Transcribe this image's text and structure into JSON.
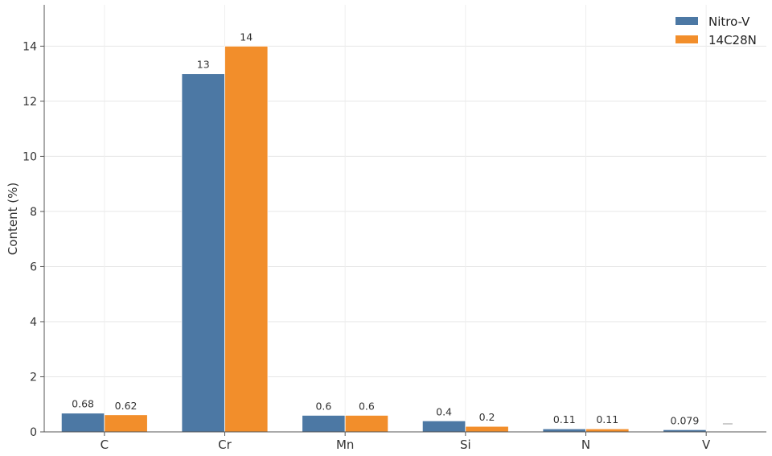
{
  "chart_data": {
    "type": "bar",
    "title": "",
    "xlabel": "",
    "ylabel": "Content (%)",
    "ylim": [
      0,
      15.5
    ],
    "yticks": [
      0,
      2,
      4,
      6,
      8,
      10,
      12,
      14
    ],
    "grid": true,
    "legend_position": "top-right",
    "categories": [
      "C",
      "Cr",
      "Mn",
      "Si",
      "N",
      "V"
    ],
    "series": [
      {
        "name": "Nitro-V",
        "color": "#4c78a4",
        "values": [
          0.68,
          13,
          0.6,
          0.4,
          0.11,
          0.079
        ],
        "labels": [
          "0.68",
          "13",
          "0.6",
          "0.4",
          "0.11",
          "0.079"
        ]
      },
      {
        "name": "14C28N",
        "color": "#f28e2b",
        "values": [
          0.62,
          14,
          0.6,
          0.2,
          0.11,
          null
        ],
        "labels": [
          "0.62",
          "14",
          "0.6",
          "0.2",
          "0.11",
          "—"
        ]
      }
    ]
  }
}
